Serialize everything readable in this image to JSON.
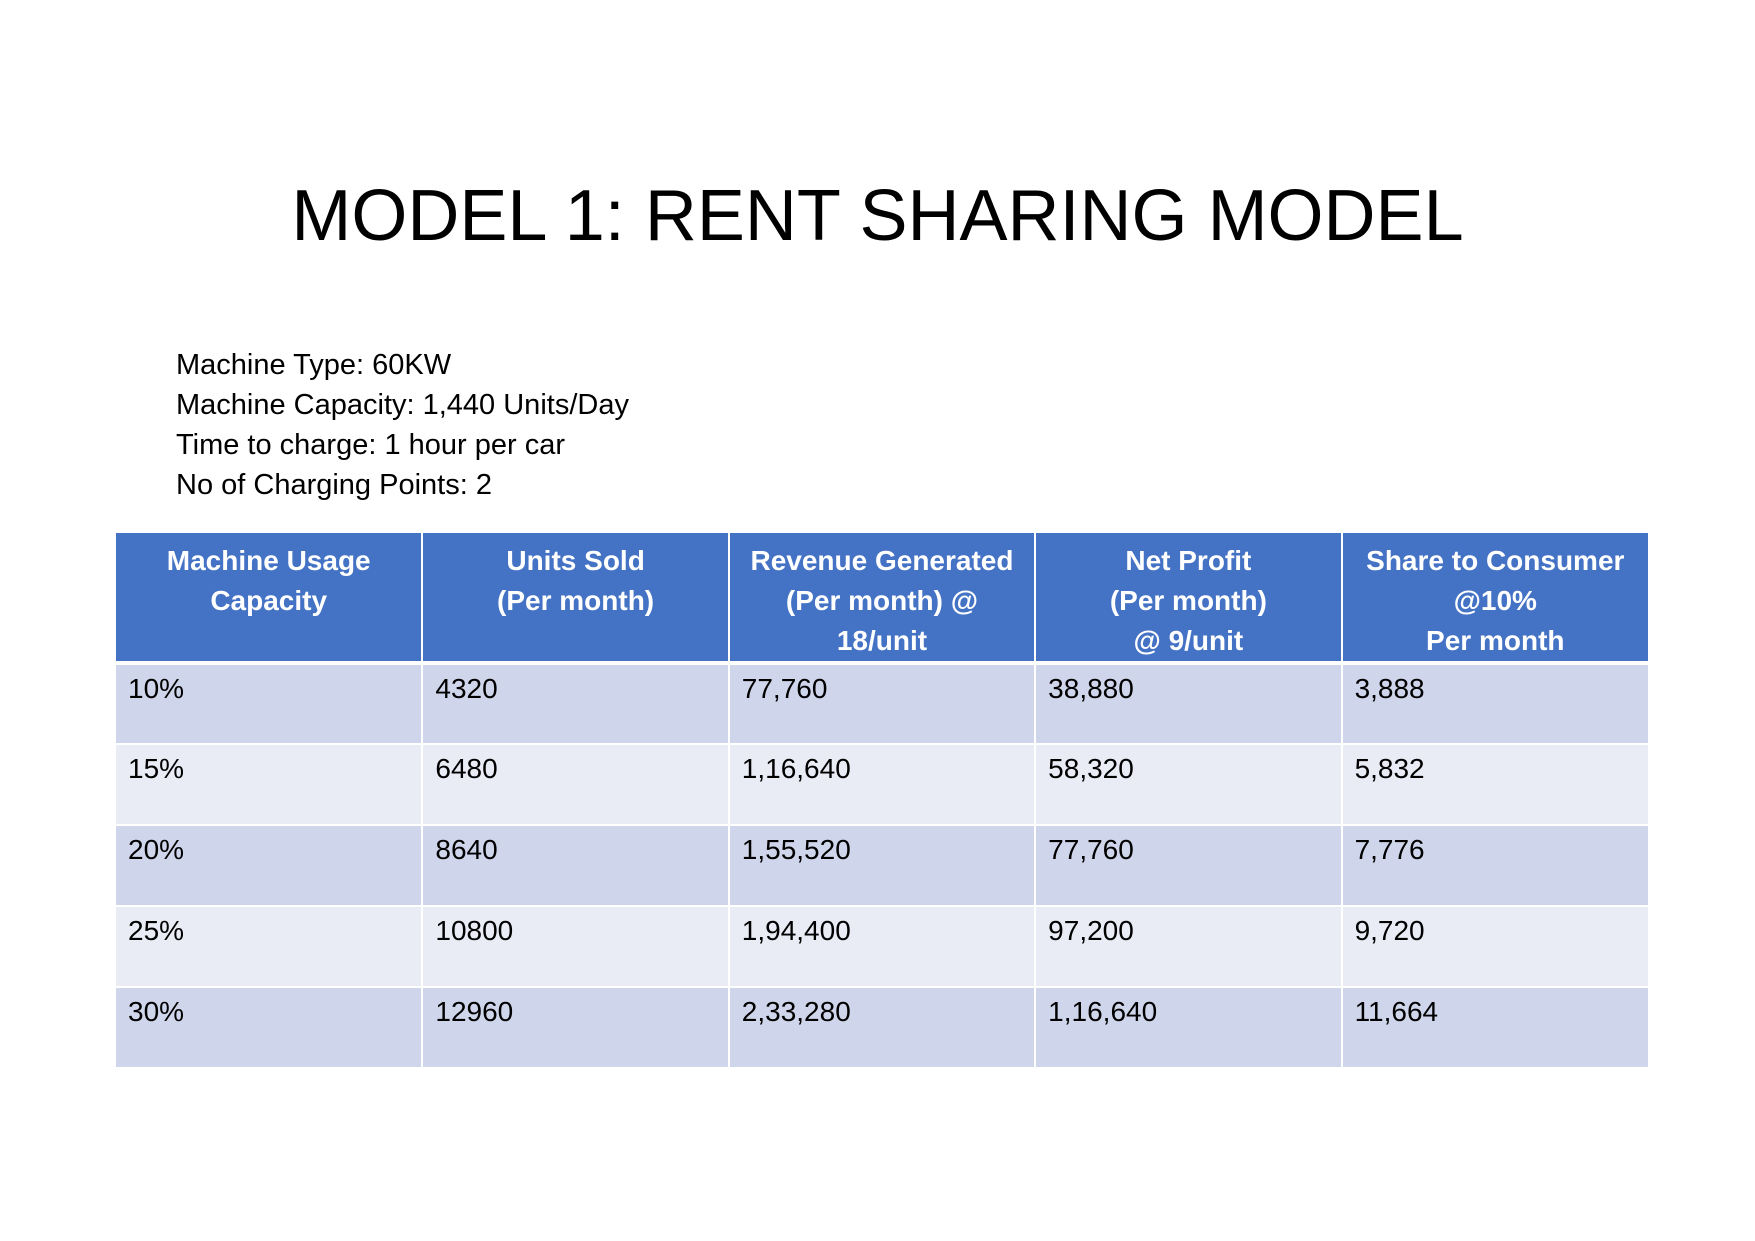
{
  "title": "MODEL 1: RENT SHARING MODEL",
  "specs": [
    "Machine Type: 60KW",
    "Machine Capacity: 1,440 Units/Day",
    "Time to charge: 1 hour per car",
    "No of Charging Points: 2"
  ],
  "table": {
    "headers": [
      [
        "Machine Usage",
        "Capacity"
      ],
      [
        "Units Sold",
        "(Per month)"
      ],
      [
        "Revenue Generated",
        "(Per month) @",
        "18/unit"
      ],
      [
        "Net Profit",
        "(Per month)",
        "@ 9/unit"
      ],
      [
        "Share to Consumer",
        "@10%",
        "Per month"
      ]
    ],
    "rows": [
      [
        "10%",
        "4320",
        "77,760",
        "38,880",
        "3,888"
      ],
      [
        "15%",
        "6480",
        "1,16,640",
        "58,320",
        "5,832"
      ],
      [
        "20%",
        "8640",
        "1,55,520",
        "77,760",
        "7,776"
      ],
      [
        "25%",
        "10800",
        "1,94,400",
        "97,200",
        "9,720"
      ],
      [
        "30%",
        "12960",
        "2,33,280",
        "1,16,640",
        "11,664"
      ]
    ]
  },
  "colors": {
    "header_bg": "#4472c4",
    "row_odd_bg": "#cfd5ea",
    "row_even_bg": "#e9ebf5"
  }
}
